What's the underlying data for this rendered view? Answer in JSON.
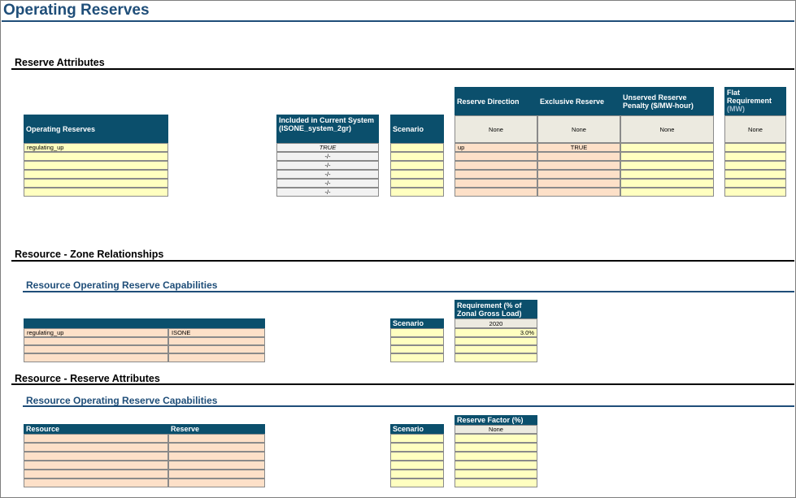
{
  "page": {
    "title": "Operating Reserves"
  },
  "reserve_attributes": {
    "section_title": "Reserve Attributes",
    "operating_reserves_header": "Operating Reserves",
    "operating_reserves_values": [
      "regulating_up",
      "",
      "",
      "",
      "",
      ""
    ],
    "included_header": "Included in Current System (ISONE_system_2gr)",
    "included_values": [
      "TRUE",
      "-/-",
      "-/-",
      "-/-",
      "-/-",
      "-/-"
    ],
    "scenario_header": "Scenario",
    "reserve_direction_header": "Reserve Direction",
    "exclusive_reserve_header": "Exclusive Reserve",
    "unserved_penalty_header": "Unserved Reserve Penalty ($/MW-hour)",
    "flat_requirement_header": "Flat Requirement",
    "flat_requirement_unit": "(MW)",
    "subheader_value": "None",
    "attr_rows": [
      [
        "up",
        "TRUE",
        "",
        ""
      ],
      [
        "",
        "",
        "",
        ""
      ],
      [
        "",
        "",
        "",
        ""
      ],
      [
        "",
        "",
        "",
        ""
      ],
      [
        "",
        "",
        "",
        ""
      ],
      [
        "",
        "",
        "",
        ""
      ]
    ]
  },
  "resource_zone": {
    "section_title": "Resource - Zone Relationships",
    "subsection_title": "Resource Operating Reserve Capabilities",
    "rows": [
      [
        "regulating_up",
        "ISONE"
      ],
      [
        "",
        ""
      ],
      [
        "",
        ""
      ],
      [
        "",
        ""
      ]
    ],
    "scenario_header": "Scenario",
    "requirement_header": "Requirement (% of Zonal Gross Load)",
    "requirement_year": "2020",
    "requirement_values": [
      "3.0%",
      "",
      "",
      ""
    ]
  },
  "resource_reserve": {
    "section_title": "Resource - Reserve Attributes",
    "subsection_title": "Resource Operating Reserve Capabilities",
    "resource_header": "Resource",
    "reserve_header": "Reserve",
    "scenario_header": "Scenario",
    "reserve_factor_header": "Reserve Factor (%)",
    "reserve_factor_sub": "None"
  },
  "colors": {
    "header_fill": "#0b4f6c",
    "title_color": "#1f4e79",
    "input_yellow": "#ffffc0",
    "input_peach": "#fde0c8",
    "subheader_fill": "#eceae0"
  }
}
